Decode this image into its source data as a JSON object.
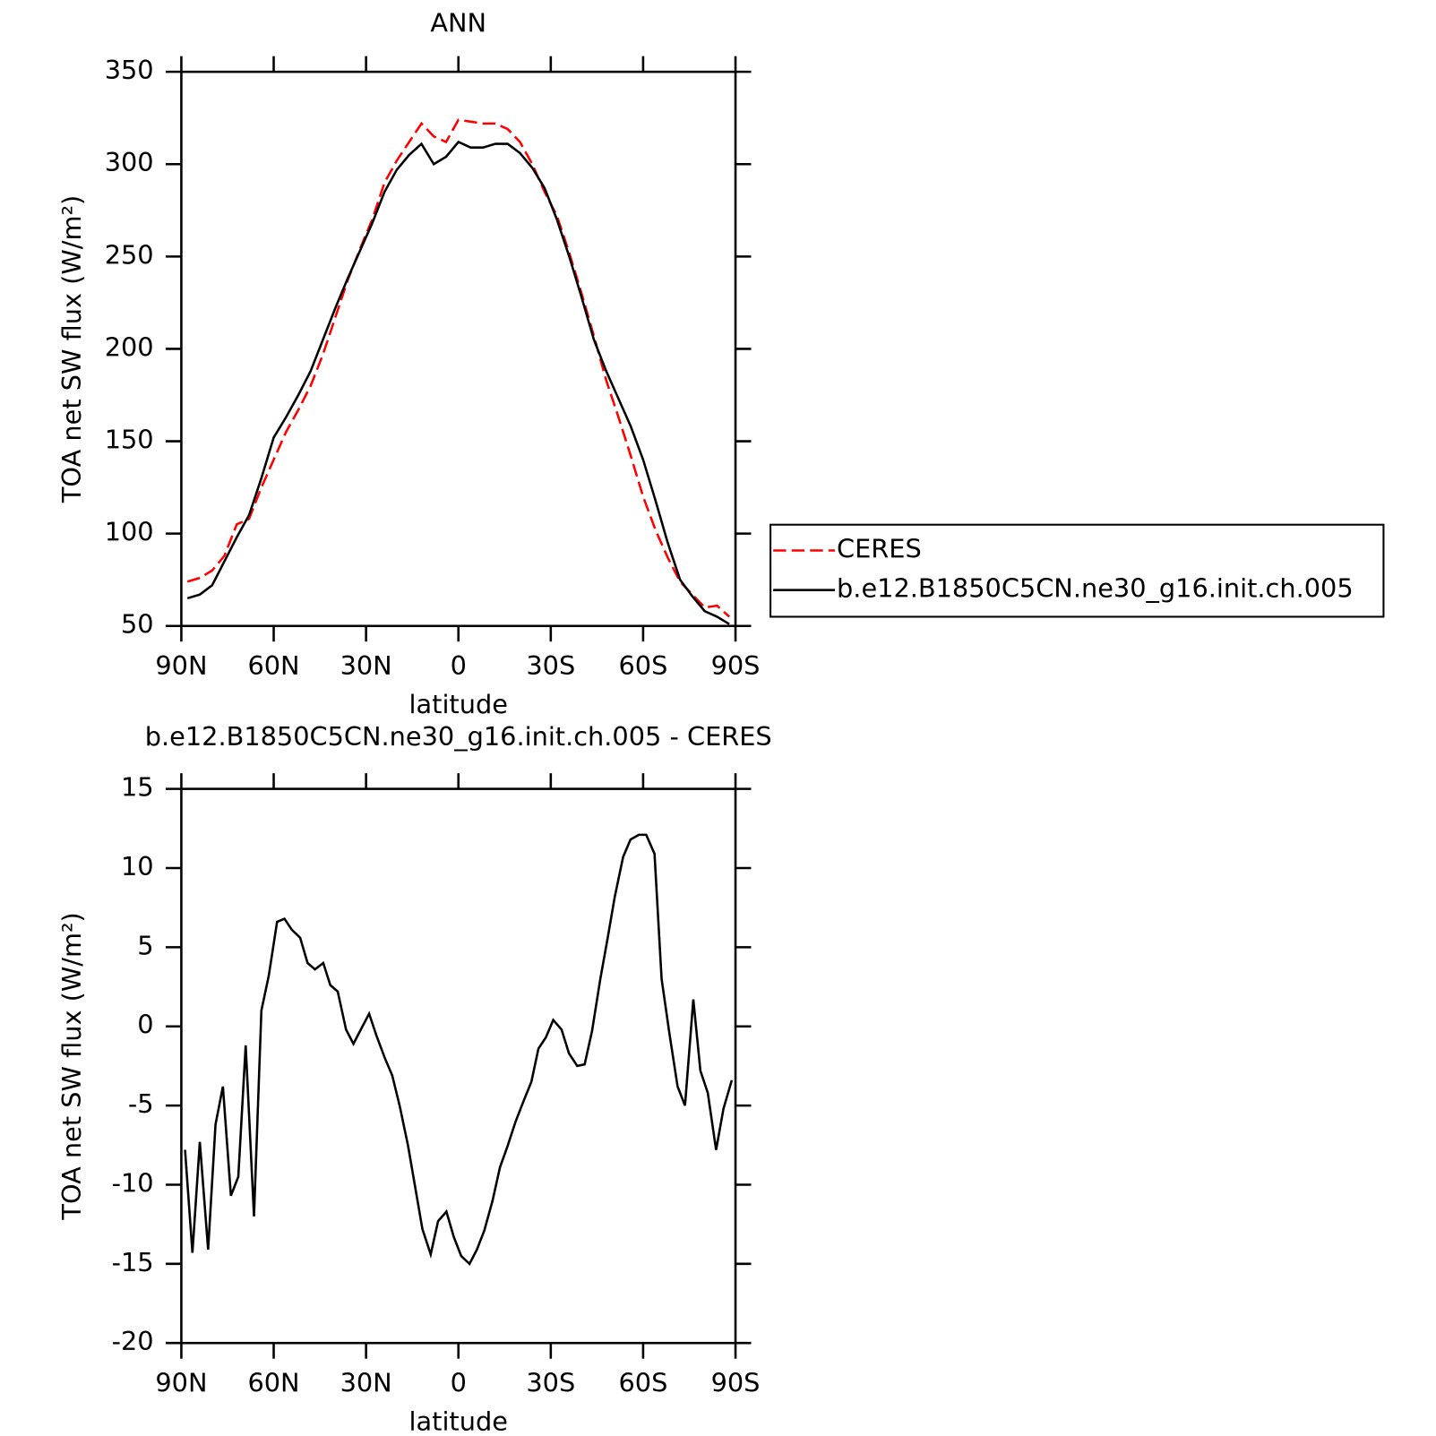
{
  "chart_data": [
    {
      "type": "line",
      "title": "ANN",
      "xlabel": "latitude",
      "ylabel": "TOA net SW flux (W/m²)",
      "x": [
        88,
        84,
        80,
        76,
        72,
        68,
        64,
        60,
        56,
        52,
        48,
        44,
        40,
        36,
        32,
        28,
        24,
        20,
        16,
        12,
        8,
        4,
        0,
        -4,
        -8,
        -12,
        -16,
        -20,
        -24,
        -28,
        -32,
        -36,
        -40,
        -44,
        -48,
        -52,
        -56,
        -60,
        -64,
        -68,
        -72,
        -76,
        -80,
        -84,
        -88
      ],
      "series": [
        {
          "name": "CERES",
          "color": "#ff0000",
          "dash": "dashed",
          "values": [
            74,
            76,
            80,
            88,
            105,
            108,
            125,
            140,
            155,
            167,
            180,
            197,
            217,
            237,
            254,
            270,
            290,
            302,
            312,
            322,
            315,
            312,
            324,
            323,
            322,
            322,
            319,
            312,
            300,
            285,
            272,
            252,
            230,
            207,
            183,
            163,
            142,
            120,
            102,
            87,
            74,
            67,
            60,
            61,
            55
          ]
        },
        {
          "name": "b.e12.B1850C5CN.ne30_g16.init.ch.005",
          "color": "#000000",
          "dash": "solid",
          "values": [
            65,
            67,
            72,
            85,
            98,
            110,
            130,
            152,
            163,
            175,
            188,
            205,
            222,
            238,
            253,
            268,
            285,
            297,
            305,
            311,
            300,
            304,
            312,
            309,
            309,
            311,
            311,
            306,
            298,
            287,
            270,
            250,
            228,
            205,
            188,
            173,
            158,
            140,
            118,
            95,
            75,
            66,
            58,
            55,
            51
          ]
        }
      ],
      "xlim": [
        90,
        -90
      ],
      "xticks": [
        {
          "value": 90,
          "label": "90N"
        },
        {
          "value": 60,
          "label": "60N"
        },
        {
          "value": 30,
          "label": "30N"
        },
        0,
        {
          "value": -30,
          "label": "30S"
        },
        {
          "value": -60,
          "label": "60S"
        },
        {
          "value": -90,
          "label": "90S"
        }
      ],
      "ylim": [
        50,
        350
      ],
      "yticks": [
        50,
        100,
        150,
        200,
        250,
        300,
        350
      ],
      "legend": "right"
    },
    {
      "type": "line",
      "title": "b.e12.B1850C5CN.ne30_g16.init.ch.005 - CERES",
      "xlabel": "latitude",
      "ylabel": "TOA net SW flux (W/m²)",
      "x": [
        88.8,
        86.4,
        84,
        81.3,
        78.9,
        76.5,
        73.9,
        71.5,
        69.1,
        66.4,
        64,
        61.6,
        58.9,
        56.5,
        54.1,
        51.4,
        49,
        46.6,
        43.9,
        41.6,
        39.2,
        36.5,
        34.1,
        31.7,
        29,
        26.6,
        23.9,
        21.5,
        19.1,
        16.4,
        14,
        11.7,
        9,
        6.6,
        3.9,
        1.5,
        -0.9,
        -3.6,
        -6,
        -8.4,
        -11.1,
        -13.5,
        -15.9,
        -18.6,
        -21,
        -23.7,
        -26,
        -28.4,
        -30.8,
        -33.5,
        -35.9,
        -38.6,
        -41,
        -43.4,
        -46.1,
        -48.5,
        -50.8,
        -53.5,
        -55.9,
        -58.6,
        -61,
        -63.7,
        -66,
        -68.5,
        -71.2,
        -73.6,
        -76.3,
        -78.6,
        -81,
        -83.7,
        -86.1,
        -88.8
      ],
      "values": [
        -7.8,
        -14.3,
        -7.3,
        -14.1,
        -6.2,
        -3.8,
        -10.7,
        -9.5,
        -1.2,
        -12,
        1,
        3.2,
        6.6,
        6.8,
        6.1,
        5.6,
        4,
        3.6,
        4,
        2.6,
        2.2,
        -0.2,
        -1.1,
        -0.2,
        0.8,
        -0.6,
        -2,
        -3.1,
        -5,
        -7.5,
        -10.2,
        -12.8,
        -14.4,
        -12.3,
        -11.7,
        -13.3,
        -14.5,
        -15,
        -14.1,
        -12.9,
        -11,
        -8.9,
        -7.6,
        -6,
        -4.8,
        -3.5,
        -1.4,
        -0.7,
        0.4,
        -0.2,
        -1.7,
        -2.5,
        -2.4,
        -0.3,
        3,
        5.6,
        8.2,
        10.7,
        11.8,
        12.1,
        12.1,
        10.9,
        3,
        -0.4,
        -3.8,
        -5,
        1.7,
        -2.8,
        -4.2,
        -7.8,
        -5.2,
        -3.4
      ],
      "color": "#000000",
      "xlim": [
        90,
        -90
      ],
      "xticks": [
        {
          "value": 90,
          "label": "90N"
        },
        {
          "value": 60,
          "label": "60N"
        },
        {
          "value": 30,
          "label": "30N"
        },
        0,
        {
          "value": -30,
          "label": "30S"
        },
        {
          "value": -60,
          "label": "60S"
        },
        {
          "value": -90,
          "label": "90S"
        }
      ],
      "ylim": [
        -20,
        15
      ],
      "yticks": [
        -20,
        -15,
        -10,
        -5,
        0,
        5,
        10,
        15
      ]
    }
  ]
}
